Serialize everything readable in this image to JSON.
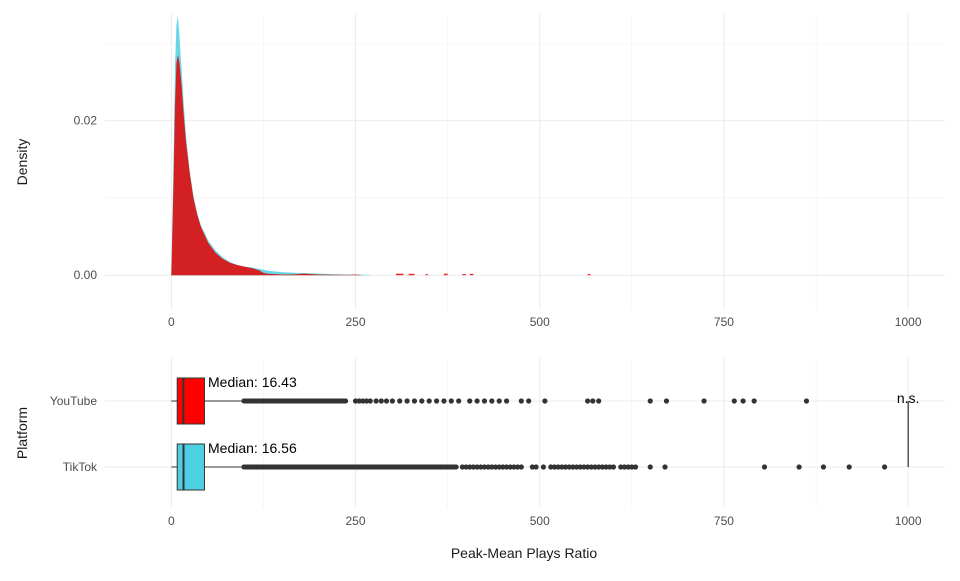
{
  "chart_data": [
    {
      "type": "area",
      "panel": "density",
      "title": "",
      "xlabel": "",
      "ylabel": "Density",
      "xlim": [
        -90,
        1050
      ],
      "ylim": [
        -0.0045,
        0.0338
      ],
      "x_ticks": [
        0,
        250,
        500,
        750,
        1000
      ],
      "x_tick_labels": [
        "0",
        "250",
        "500",
        "750",
        "1000"
      ],
      "y_ticks": [
        0.0,
        0.02
      ],
      "y_tick_labels": [
        "0.00",
        "0.02"
      ],
      "grid": true,
      "legend": "none",
      "series": [
        {
          "key": "tiktok",
          "color": "#4DD0E1",
          "x": [
            0,
            3,
            5,
            7,
            9,
            11,
            14,
            17,
            20,
            25,
            30,
            35,
            40,
            50,
            60,
            70,
            80,
            90,
            100,
            110,
            120,
            130,
            140,
            150,
            160,
            170,
            180,
            190,
            200,
            220,
            240,
            260,
            270,
            271
          ],
          "y": [
            0.0,
            0.015,
            0.027,
            0.0325,
            0.0335,
            0.031,
            0.0265,
            0.022,
            0.018,
            0.0135,
            0.0103,
            0.0081,
            0.0065,
            0.0045,
            0.0032,
            0.0023,
            0.0017,
            0.0013,
            0.0011,
            0.001,
            0.0008,
            0.0006,
            0.0005,
            0.0004,
            0.00035,
            0.0003,
            0.00028,
            0.00025,
            0.0002,
            0.00015,
            0.0001,
            8e-05,
            5e-05,
            0.0
          ]
        },
        {
          "key": "youtube",
          "color": "#E60000",
          "x": [
            0,
            3,
            5,
            7,
            9,
            11,
            14,
            17,
            20,
            25,
            30,
            35,
            40,
            50,
            60,
            70,
            80,
            90,
            100,
            110,
            120,
            125,
            130,
            140,
            150,
            160,
            170,
            180,
            190,
            200,
            210,
            220,
            240,
            250,
            260
          ],
          "y": [
            0.0,
            0.012,
            0.022,
            0.0275,
            0.0285,
            0.0275,
            0.0245,
            0.0205,
            0.0172,
            0.0132,
            0.01,
            0.0079,
            0.0063,
            0.0042,
            0.0029,
            0.0021,
            0.0016,
            0.0013,
            0.0011,
            0.0009,
            0.0006,
            0.0003,
            0.0002,
            0.00015,
            0.0001,
            0.0001,
            0.00012,
            0.0002,
            0.00015,
            0.0001,
            8e-05,
            6e-05,
            5e-05,
            0.0001,
            0.0
          ]
        }
      ],
      "youtube_spikes": [
        {
          "x": [
            305,
            315
          ],
          "y": 0.0002
        },
        {
          "x": [
            322,
            330
          ],
          "y": 0.00018
        },
        {
          "x": [
            345,
            348
          ],
          "y": 0.00015
        },
        {
          "x": [
            370,
            375
          ],
          "y": 0.0002
        },
        {
          "x": [
            395,
            400
          ],
          "y": 0.00015
        },
        {
          "x": [
            405,
            410
          ],
          "y": 0.00018
        },
        {
          "x": [
            565,
            569
          ],
          "y": 0.00015
        }
      ]
    },
    {
      "type": "box",
      "panel": "boxplot",
      "xlabel": "Peak-Mean Plays Ratio",
      "ylabel": "Platform",
      "xlim": [
        -90,
        1050
      ],
      "x_ticks": [
        0,
        250,
        500,
        750,
        1000
      ],
      "x_tick_labels": [
        "0",
        "250",
        "500",
        "750",
        "1000"
      ],
      "grid": true,
      "categories": [
        "YouTube",
        "TikTok"
      ],
      "boxes": [
        {
          "key": "youtube",
          "category": "YouTube",
          "color": "#FF0000",
          "q1": 8,
          "median": 16.43,
          "q3": 45,
          "whisker_low": 0,
          "whisker_high": 95,
          "median_label": "Median: 16.43",
          "outlier_dense_range": [
            95,
            240
          ],
          "outliers": [
            250,
            255,
            260,
            265,
            270,
            278,
            285,
            292,
            300,
            310,
            320,
            330,
            340,
            350,
            360,
            370,
            380,
            390,
            405,
            415,
            425,
            435,
            445,
            455,
            475,
            485,
            507,
            565,
            572,
            580,
            650,
            672,
            723,
            764,
            776,
            791,
            862
          ]
        },
        {
          "key": "tiktok",
          "category": "TikTok",
          "color": "#4DD0E1",
          "q1": 8,
          "median": 16.56,
          "q3": 45,
          "whisker_low": 0,
          "whisker_high": 95,
          "median_label": "Median: 16.56",
          "outlier_dense_range": [
            95,
            390
          ],
          "outliers": [
            395,
            400,
            405,
            410,
            415,
            420,
            425,
            430,
            435,
            440,
            445,
            450,
            455,
            460,
            465,
            470,
            475,
            490,
            495,
            505,
            515,
            520,
            525,
            530,
            535,
            540,
            545,
            550,
            555,
            560,
            565,
            570,
            575,
            580,
            585,
            590,
            595,
            600,
            610,
            615,
            620,
            625,
            630,
            650,
            670,
            805,
            852,
            885,
            920,
            968
          ]
        }
      ],
      "significance": {
        "x": 1000,
        "label": "n.s."
      }
    }
  ]
}
